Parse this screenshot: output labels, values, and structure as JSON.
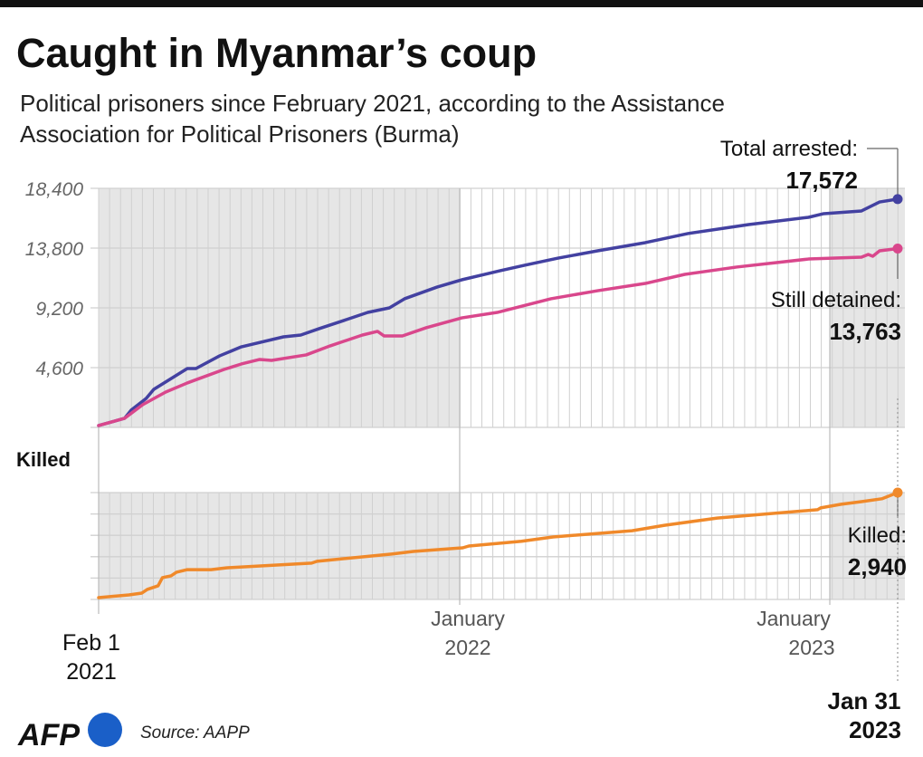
{
  "title": "Caught in Myanmar’s coup",
  "subtitle": [
    "Political prisoners since February 2021, according to the Assistance",
    "Association for Political Prisoners (Burma)"
  ],
  "colors": {
    "arrested": "#4341a1",
    "detained": "#d9478c",
    "killed": "#f0892a",
    "shading": "#e6e6e6",
    "grid": "#d0d0d0"
  },
  "x_labels": {
    "start": [
      "Feb 1",
      "2021"
    ],
    "jan2022": [
      "January",
      "2022"
    ],
    "jan2023": [
      "January",
      "2023"
    ],
    "end": [
      "Jan 31",
      "2023"
    ]
  },
  "annotations": {
    "arrested_label": "Total arrested:",
    "arrested_value": "17,572",
    "detained_label": "Still detained:",
    "detained_value": "13,763",
    "killed_label": "Killed:",
    "killed_value": "2,940"
  },
  "killed_section_label": "Killed",
  "footer": {
    "logo": "AFP",
    "source": "Source: AAPP"
  },
  "chart_data": [
    {
      "type": "line",
      "title": "",
      "xlabel": "",
      "ylabel": "",
      "xlim": [
        "2021-02-01",
        "2023-01-31"
      ],
      "ylim": [
        0,
        18400
      ],
      "yticks": [
        "18,400",
        "13,800",
        "9,200",
        "4,600"
      ],
      "ytick_values": [
        18400,
        13800,
        9200,
        4600
      ],
      "grid": true,
      "series": [
        {
          "name": "Total arrested",
          "points": [
            [
              "2021-02-01",
              140
            ],
            [
              "2021-02-25",
              700
            ],
            [
              "2021-03-03",
              1320
            ],
            [
              "2021-03-17",
              2230
            ],
            [
              "2021-03-24",
              2930
            ],
            [
              "2021-04-24",
              4530
            ],
            [
              "2021-05-02",
              4530
            ],
            [
              "2021-05-24",
              5510
            ],
            [
              "2021-06-13",
              6200
            ],
            [
              "2021-07-22",
              6970
            ],
            [
              "2021-08-07",
              7110
            ],
            [
              "2021-08-24",
              7600
            ],
            [
              "2021-09-13",
              8150
            ],
            [
              "2021-10-08",
              8850
            ],
            [
              "2021-10-28",
              9200
            ],
            [
              "2021-11-11",
              9900
            ],
            [
              "2021-12-11",
              10800
            ],
            [
              "2022-01-03",
              11360
            ],
            [
              "2022-02-10",
              12060
            ],
            [
              "2022-03-06",
              12480
            ],
            [
              "2022-04-08",
              13030
            ],
            [
              "2022-05-17",
              13590
            ],
            [
              "2022-07-03",
              14220
            ],
            [
              "2022-08-14",
              14920
            ],
            [
              "2022-10-13",
              15610
            ],
            [
              "2022-12-11",
              16170
            ],
            [
              "2022-12-26",
              16450
            ],
            [
              "2023-01-15",
              16660
            ],
            [
              "2023-01-23",
              17350
            ],
            [
              "2023-01-31",
              17572
            ]
          ]
        },
        {
          "name": "Still detained",
          "points": [
            [
              "2021-02-01",
              140
            ],
            [
              "2021-02-25",
              700
            ],
            [
              "2021-03-14",
              1760
            ],
            [
              "2021-04-04",
              2720
            ],
            [
              "2021-04-24",
              3420
            ],
            [
              "2021-05-05",
              3760
            ],
            [
              "2021-05-28",
              4460
            ],
            [
              "2021-06-13",
              4880
            ],
            [
              "2021-06-30",
              5230
            ],
            [
              "2021-07-11",
              5160
            ],
            [
              "2021-08-12",
              5580
            ],
            [
              "2021-09-03",
              6270
            ],
            [
              "2021-10-03",
              7110
            ],
            [
              "2021-10-17",
              7390
            ],
            [
              "2021-10-23",
              7040
            ],
            [
              "2021-11-09",
              7040
            ],
            [
              "2021-12-01",
              7670
            ],
            [
              "2022-01-03",
              8430
            ],
            [
              "2022-02-07",
              8850
            ],
            [
              "2022-04-01",
              9900
            ],
            [
              "2022-05-17",
              10520
            ],
            [
              "2022-07-03",
              11080
            ],
            [
              "2022-08-11",
              11780
            ],
            [
              "2022-10-01",
              12340
            ],
            [
              "2022-12-11",
              12960
            ],
            [
              "2023-01-15",
              13100
            ],
            [
              "2023-01-18",
              13310
            ],
            [
              "2023-01-20",
              13170
            ],
            [
              "2023-01-23",
              13590
            ],
            [
              "2023-01-31",
              13763
            ]
          ]
        }
      ]
    },
    {
      "type": "line",
      "title": "Killed",
      "xlim": [
        "2021-02-01",
        "2023-01-31"
      ],
      "ylim": [
        0,
        2940
      ],
      "grid": true,
      "series": [
        {
          "name": "Killed",
          "points": [
            [
              "2021-02-01",
              50
            ],
            [
              "2021-03-01",
              125
            ],
            [
              "2021-03-13",
              175
            ],
            [
              "2021-03-18",
              275
            ],
            [
              "2021-03-28",
              375
            ],
            [
              "2021-04-01",
              600
            ],
            [
              "2021-04-09",
              650
            ],
            [
              "2021-04-14",
              750
            ],
            [
              "2021-04-24",
              820
            ],
            [
              "2021-05-16",
              820
            ],
            [
              "2021-05-30",
              870
            ],
            [
              "2021-08-17",
              1000
            ],
            [
              "2021-08-22",
              1050
            ],
            [
              "2021-10-30",
              1250
            ],
            [
              "2021-11-19",
              1320
            ],
            [
              "2022-01-04",
              1420
            ],
            [
              "2022-01-10",
              1470
            ],
            [
              "2022-03-03",
              1600
            ],
            [
              "2022-04-03",
              1720
            ],
            [
              "2022-06-20",
              1890
            ],
            [
              "2022-07-22",
              2040
            ],
            [
              "2022-09-12",
              2240
            ],
            [
              "2022-12-20",
              2470
            ],
            [
              "2022-12-23",
              2520
            ],
            [
              "2023-01-06",
              2620
            ],
            [
              "2023-01-15",
              2690
            ],
            [
              "2023-01-24",
              2770
            ],
            [
              "2023-01-31",
              2940
            ]
          ]
        }
      ]
    }
  ]
}
